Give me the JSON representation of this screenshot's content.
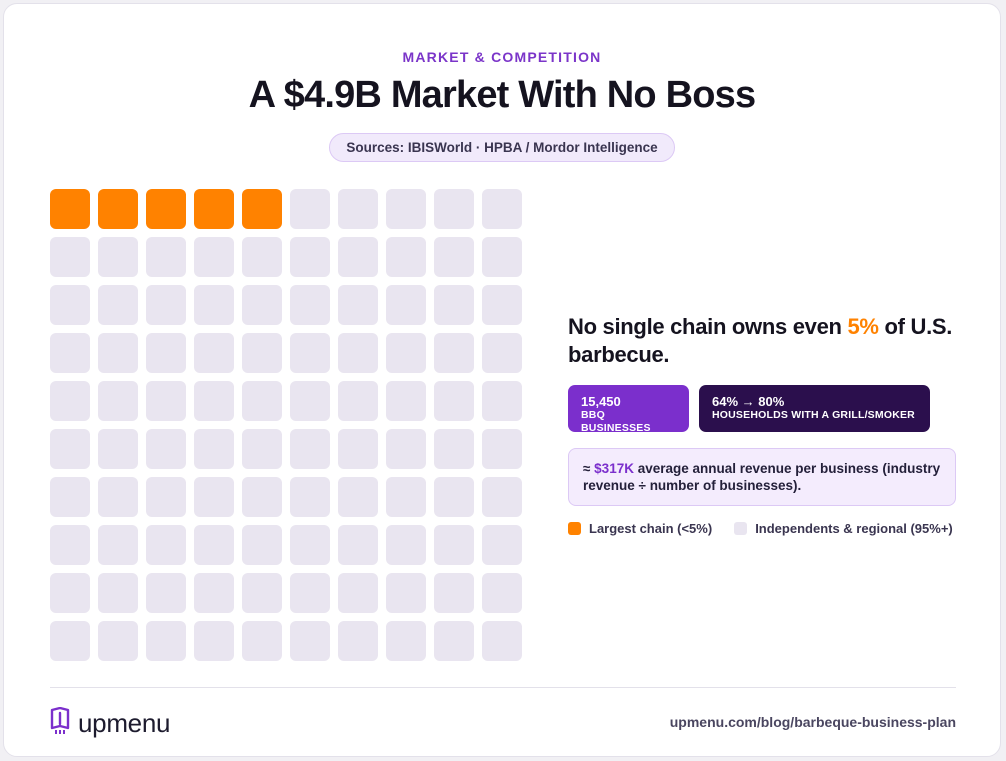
{
  "kicker": "MARKET & COMPETITION",
  "title": "A $4.9B Market With No Boss",
  "sources": "Sources: IBISWorld · HPBA / Mordor Intelligence",
  "chart_data": {
    "type": "waffle",
    "total": 100,
    "highlighted": 5,
    "rows": 10,
    "columns": 10,
    "colors": {
      "highlighted": "#ff8200",
      "rest": "#e9e5f0"
    }
  },
  "headline": {
    "before": "No single chain owns even ",
    "accent": "5%",
    "after": " of U.S. barbecue."
  },
  "stats": [
    {
      "value": "15,450",
      "label": "BBQ BUSINESSES",
      "color": "#7b2fcc"
    },
    {
      "value": "64% → 80%",
      "label": "HOUSEHOLDS WITH A GRILL/SMOKER",
      "color": "#2b0f4d"
    }
  ],
  "note": {
    "prefix": "≈ ",
    "accent": "$317K",
    "text": " average annual revenue per business (industry revenue ÷ number of businesses)."
  },
  "legend": [
    {
      "label": "Largest chain (<5%)",
      "color": "#ff8200"
    },
    {
      "label": "Independents & regional (95%+)",
      "color": "#e9e5f0"
    }
  ],
  "brand": {
    "name": "upmenu",
    "icon": "upmenu-logo-icon",
    "color": "#7b2fcc"
  },
  "url": "upmenu.com/blog/barbeque-business-plan"
}
